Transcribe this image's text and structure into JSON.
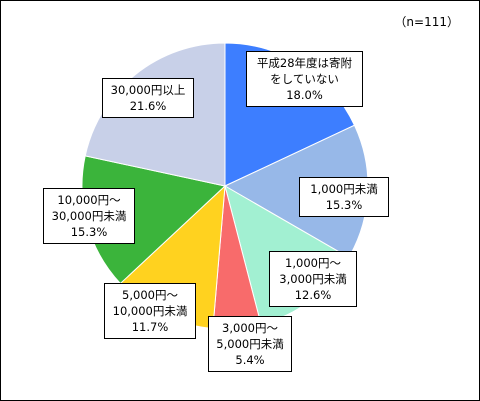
{
  "chart_data": {
    "type": "pie",
    "note": "（n=111）",
    "start": "top",
    "direction": "clockwise",
    "slices": [
      {
        "label_lines": [
          "平成28年度は寄附",
          "をしていない"
        ],
        "value": 18.0,
        "display": "18.0%",
        "color": "#3d7eff"
      },
      {
        "label_lines": [
          "1,000円未満"
        ],
        "value": 15.3,
        "display": "15.3%",
        "color": "#97b8e8"
      },
      {
        "label_lines": [
          "1,000円～",
          "3,000円未満"
        ],
        "value": 12.6,
        "display": "12.6%",
        "color": "#a2f0d2"
      },
      {
        "label_lines": [
          "3,000円～",
          "5,000円未満"
        ],
        "value": 5.4,
        "display": "5.4%",
        "color": "#f86b6b"
      },
      {
        "label_lines": [
          "5,000円～",
          "10,000円未満"
        ],
        "value": 11.7,
        "display": "11.7%",
        "color": "#ffd21f"
      },
      {
        "label_lines": [
          "10,000円～",
          "30,000円未満"
        ],
        "value": 15.3,
        "display": "15.3%",
        "color": "#3bb43b"
      },
      {
        "label_lines": [
          "30,000円以上"
        ],
        "value": 21.6,
        "display": "21.6%",
        "color": "#c8d0e8"
      }
    ]
  }
}
